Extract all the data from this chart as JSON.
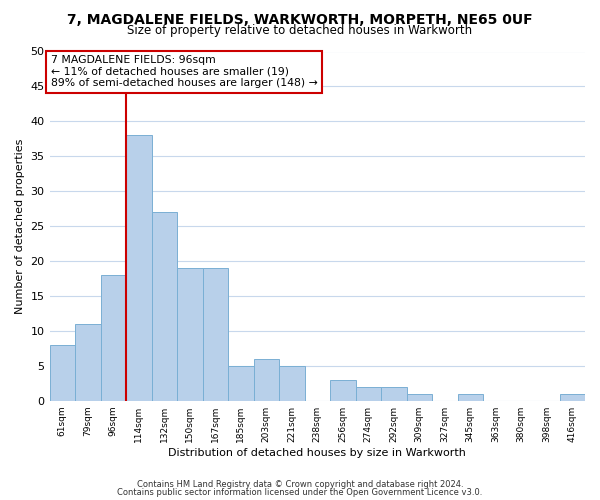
{
  "title": "7, MAGDALENE FIELDS, WARKWORTH, MORPETH, NE65 0UF",
  "subtitle": "Size of property relative to detached houses in Warkworth",
  "xlabel": "Distribution of detached houses by size in Warkworth",
  "ylabel": "Number of detached properties",
  "bar_labels": [
    "61sqm",
    "79sqm",
    "96sqm",
    "114sqm",
    "132sqm",
    "150sqm",
    "167sqm",
    "185sqm",
    "203sqm",
    "221sqm",
    "238sqm",
    "256sqm",
    "274sqm",
    "292sqm",
    "309sqm",
    "327sqm",
    "345sqm",
    "363sqm",
    "380sqm",
    "398sqm",
    "416sqm"
  ],
  "bar_values": [
    8,
    11,
    18,
    38,
    27,
    19,
    19,
    5,
    6,
    5,
    0,
    3,
    2,
    2,
    1,
    0,
    1,
    0,
    0,
    0,
    1
  ],
  "bar_color": "#b8d0ea",
  "bar_edge_color": "#7aafd4",
  "vline_index": 2,
  "vline_color": "#cc0000",
  "ylim": [
    0,
    50
  ],
  "yticks": [
    0,
    5,
    10,
    15,
    20,
    25,
    30,
    35,
    40,
    45,
    50
  ],
  "annotation_line1": "7 MAGDALENE FIELDS: 96sqm",
  "annotation_line2": "← 11% of detached houses are smaller (19)",
  "annotation_line3": "89% of semi-detached houses are larger (148) →",
  "annotation_box_color": "#ffffff",
  "annotation_box_edge_color": "#cc0000",
  "footer_line1": "Contains HM Land Registry data © Crown copyright and database right 2024.",
  "footer_line2": "Contains public sector information licensed under the Open Government Licence v3.0.",
  "background_color": "#ffffff",
  "grid_color": "#c8d8ec"
}
